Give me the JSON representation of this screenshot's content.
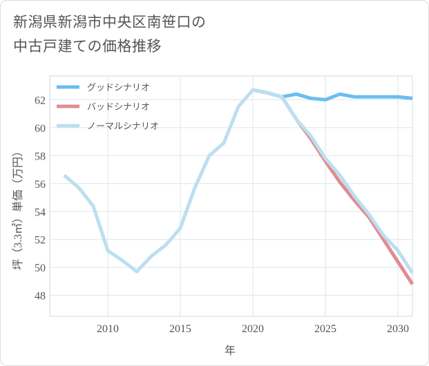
{
  "chart_data": {
    "type": "line",
    "title": "新潟県新潟市中央区南笹口の\n中古戸建ての価格推移",
    "xlabel": "年",
    "ylabel": "坪（3.3㎡）単価（万円）",
    "xlim": [
      2006,
      2031
    ],
    "ylim": [
      46.5,
      63.7
    ],
    "xticks": [
      2010,
      2015,
      2020,
      2025,
      2030
    ],
    "yticks": [
      48,
      50,
      52,
      54,
      56,
      58,
      60,
      62
    ],
    "legend_position": "top-left",
    "series": [
      {
        "name": "グッドシナリオ",
        "color": "#6cbcf0",
        "x": [
          2020,
          2021,
          2022,
          2023,
          2024,
          2025,
          2026,
          2027,
          2028,
          2029,
          2030,
          2031
        ],
        "values": [
          62.7,
          62.5,
          62.2,
          62.4,
          62.1,
          62.0,
          62.4,
          62.2,
          62.2,
          62.2,
          62.2,
          62.1
        ]
      },
      {
        "name": "バッドシナリオ",
        "color": "#e08c90",
        "x": [
          2020,
          2021,
          2022,
          2023,
          2024,
          2025,
          2026,
          2027,
          2028,
          2029,
          2030,
          2031
        ],
        "values": [
          62.7,
          62.5,
          62.2,
          60.6,
          59.2,
          57.6,
          56.1,
          54.8,
          53.6,
          52.0,
          50.4,
          48.8
        ]
      },
      {
        "name": "ノーマルシナリオ",
        "color": "#bcdff0",
        "x": [
          2007,
          2008,
          2009,
          2010,
          2011,
          2012,
          2013,
          2014,
          2015,
          2016,
          2017,
          2018,
          2019,
          2020,
          2021,
          2022,
          2023,
          2024,
          2025,
          2026,
          2027,
          2028,
          2029,
          2030,
          2031
        ],
        "values": [
          56.6,
          55.7,
          54.4,
          51.2,
          50.5,
          49.7,
          50.8,
          51.6,
          52.8,
          55.7,
          58.0,
          58.9,
          61.5,
          62.7,
          62.5,
          62.2,
          60.6,
          59.4,
          57.8,
          56.6,
          55.1,
          53.8,
          52.3,
          51.2,
          49.6
        ]
      }
    ]
  }
}
